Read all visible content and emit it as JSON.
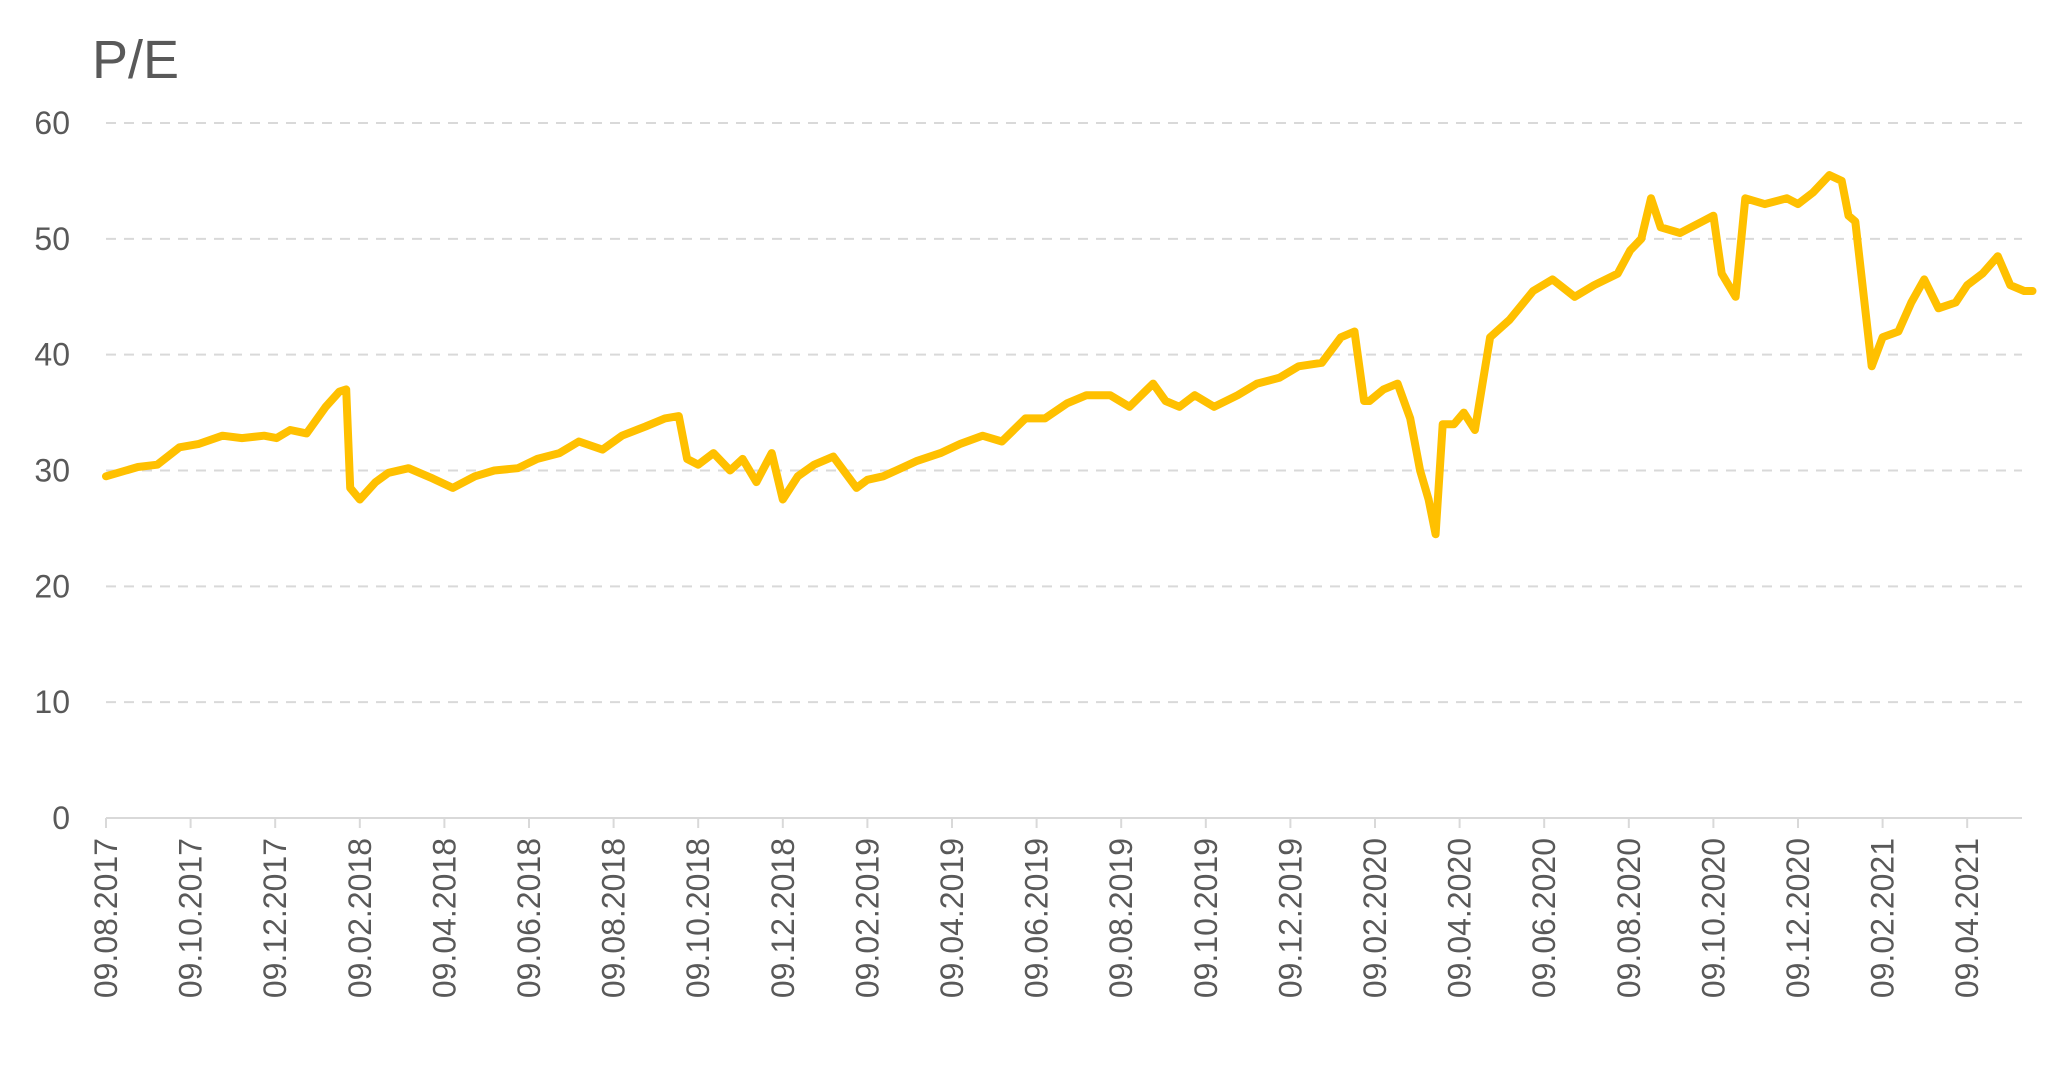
{
  "chart_data": {
    "type": "line",
    "title": "",
    "ylabel": "P/E",
    "xlabel": "",
    "ylim": [
      0,
      60
    ],
    "yticks": [
      "0",
      "10",
      "20",
      "30",
      "40",
      "50",
      "60"
    ],
    "grid": true,
    "legend": "none",
    "x_tick_labels": [
      "09.08.2017",
      "09.10.2017",
      "09.12.2017",
      "09.02.2018",
      "09.04.2018",
      "09.06.2018",
      "09.08.2018",
      "09.10.2018",
      "09.12.2018",
      "09.02.2019",
      "09.04.2019",
      "09.06.2019",
      "09.08.2019",
      "09.10.2019",
      "09.12.2019",
      "09.02.2020",
      "09.04.2020",
      "09.06.2020",
      "09.08.2020",
      "09.10.2020",
      "09.12.2020",
      "09.02.2021",
      "09.04.2021"
    ],
    "x": [
      "09.08.2017",
      "01.09.2017",
      "15.09.2017",
      "01.10.2017",
      "15.10.2017",
      "01.11.2017",
      "15.11.2017",
      "01.12.2017",
      "10.12.2017",
      "20.12.2017",
      "01.01.2018",
      "15.01.2018",
      "25.01.2018",
      "30.01.2018",
      "02.02.2018",
      "09.02.2018",
      "20.02.2018",
      "01.03.2018",
      "15.03.2018",
      "01.04.2018",
      "15.04.2018",
      "01.05.2018",
      "15.05.2018",
      "01.06.2018",
      "15.06.2018",
      "01.07.2018",
      "15.07.2018",
      "01.08.2018",
      "15.08.2018",
      "01.09.2018",
      "15.09.2018",
      "25.09.2018",
      "01.10.2018",
      "09.10.2018",
      "20.10.2018",
      "01.11.2018",
      "10.11.2018",
      "20.11.2018",
      "01.12.2018",
      "09.12.2018",
      "20.12.2018",
      "01.01.2019",
      "15.01.2019",
      "01.02.2019",
      "09.02.2019",
      "20.02.2019",
      "01.03.2019",
      "15.03.2019",
      "01.04.2019",
      "15.04.2019",
      "01.05.2019",
      "15.05.2019",
      "01.06.2019",
      "15.06.2019",
      "01.07.2019",
      "15.07.2019",
      "01.08.2019",
      "15.08.2019",
      "01.09.2019",
      "10.09.2019",
      "20.09.2019",
      "01.10.2019",
      "15.10.2019",
      "01.11.2019",
      "15.11.2019",
      "01.12.2019",
      "15.12.2019",
      "01.01.2020",
      "15.01.2020",
      "25.01.2020",
      "01.02.2020",
      "05.02.2020",
      "15.02.2020",
      "25.02.2020",
      "05.03.2020",
      "12.03.2020",
      "18.03.2020",
      "23.03.2020",
      "28.03.2020",
      "05.04.2020",
      "12.04.2020",
      "20.04.2020",
      "01.05.2020",
      "15.05.2020",
      "01.06.2020",
      "15.06.2020",
      "01.07.2020",
      "15.07.2020",
      "01.08.2020",
      "10.08.2020",
      "18.08.2020",
      "25.08.2020",
      "01.09.2020",
      "15.09.2020",
      "01.10.2020",
      "09.10.2020",
      "15.10.2020",
      "25.10.2020",
      "01.11.2020",
      "15.11.2020",
      "01.12.2020",
      "09.12.2020",
      "20.12.2020",
      "01.01.2021",
      "10.01.2021",
      "15.01.2021",
      "20.01.2021",
      "01.02.2021",
      "09.02.2021",
      "20.02.2021",
      "01.03.2021",
      "10.03.2021",
      "20.03.2021",
      "01.04.2021",
      "09.04.2021",
      "20.04.2021",
      "01.05.2021",
      "10.05.2021",
      "20.05.2021",
      "26.05.2021"
    ],
    "series": [
      {
        "color": "#FFC000",
        "values": [
          29.5,
          30.3,
          30.5,
          32,
          32.3,
          33,
          32.8,
          33,
          32.8,
          33.5,
          33.2,
          35.5,
          36.8,
          37,
          28.5,
          27.5,
          29,
          29.8,
          30.2,
          29.3,
          28.5,
          29.5,
          30,
          30.2,
          31,
          31.5,
          32.5,
          31.8,
          33,
          33.8,
          34.5,
          34.7,
          31,
          30.5,
          31.5,
          30,
          31,
          29,
          31.5,
          27.5,
          29.5,
          30.5,
          31.2,
          28.5,
          29.2,
          29.5,
          30,
          30.8,
          31.5,
          32.3,
          33,
          32.5,
          34.5,
          34.5,
          35.8,
          36.5,
          36.5,
          35.5,
          37.5,
          36,
          35.5,
          36.5,
          35.5,
          36.5,
          37.5,
          38,
          39,
          39.3,
          41.5,
          42,
          36,
          36,
          37,
          37.5,
          34.5,
          30,
          27.5,
          24.5,
          34,
          34,
          35,
          33.5,
          41.5,
          43,
          45.5,
          46.5,
          45,
          46,
          47,
          49,
          50,
          53.5,
          51,
          50.5,
          51.5,
          52,
          47,
          45,
          53.5,
          53,
          53.5,
          53,
          54,
          55.5,
          55,
          52,
          51.5,
          39,
          41.5,
          42,
          44.5,
          46.5,
          44,
          44.5,
          46,
          47,
          48.5,
          46,
          45.5,
          45.5
        ]
      }
    ]
  }
}
